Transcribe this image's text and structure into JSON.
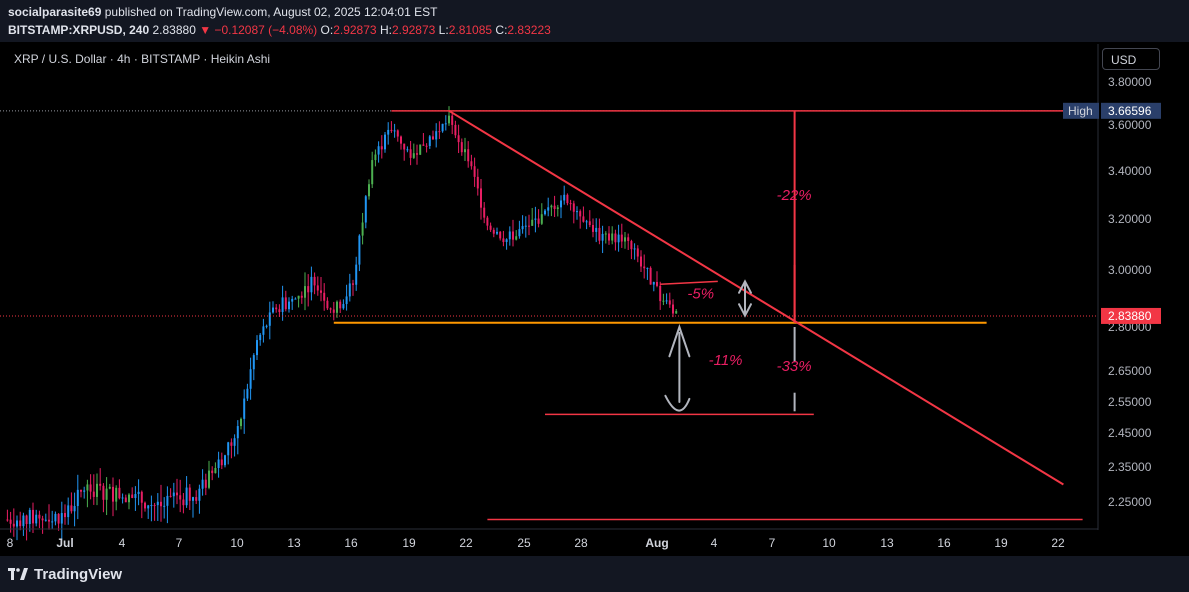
{
  "header": {
    "author": "socialparasite69",
    "published_text": "published on TradingView.com, August 02, 2025 12:04:01 EST",
    "symbol": "BITSTAMP:XRPUSD, 240",
    "last": "2.83880",
    "change": "▼ −0.12087 (−4.08%)",
    "o_label": "O:",
    "o": "2.92873",
    "h_label": "H:",
    "h": "2.92873",
    "l_label": "L:",
    "l": "2.81085",
    "c_label": "C:",
    "c": "2.83223"
  },
  "legend": "XRP / U.S. Dollar · 4h · BITSTAMP · Heikin Ashi",
  "currency_button": "USD",
  "brand": "TradingView",
  "chart_data": {
    "type": "candlestick",
    "title": "XRP / U.S. Dollar · 4h · BITSTAMP · Heikin Ashi",
    "y_axis_ticks": [
      "3.80000",
      "3.60000",
      "3.40000",
      "3.20000",
      "3.00000",
      "2.80000",
      "2.65000",
      "2.55000",
      "2.45000",
      "2.35000",
      "2.25000"
    ],
    "y_axis_values": [
      3.8,
      3.6,
      3.4,
      3.2,
      3.0,
      2.8,
      2.65,
      2.55,
      2.45,
      2.35,
      2.25
    ],
    "x_axis_ticks": [
      "8",
      "Jul",
      "4",
      "7",
      "10",
      "13",
      "16",
      "19",
      "22",
      "25",
      "28",
      "Aug",
      "4",
      "7",
      "10",
      "13",
      "16",
      "19",
      "22"
    ],
    "price_path": [
      {
        "date": "Jun 28",
        "close": 2.2
      },
      {
        "date": "Jul 1",
        "close": 2.21
      },
      {
        "date": "Jul 2",
        "close": 2.29
      },
      {
        "date": "Jul 4",
        "close": 2.27
      },
      {
        "date": "Jul 6",
        "close": 2.24
      },
      {
        "date": "Jul 8",
        "close": 2.28
      },
      {
        "date": "Jul 9",
        "close": 2.36
      },
      {
        "date": "Jul 10",
        "close": 2.45
      },
      {
        "date": "Jul 11",
        "close": 2.75
      },
      {
        "date": "Jul 12",
        "close": 2.87
      },
      {
        "date": "Jul 13",
        "close": 2.9
      },
      {
        "date": "Jul 14",
        "close": 2.97
      },
      {
        "date": "Jul 15",
        "close": 2.85
      },
      {
        "date": "Jul 16",
        "close": 2.95
      },
      {
        "date": "Jul 17",
        "close": 3.45
      },
      {
        "date": "Jul 18",
        "close": 3.58
      },
      {
        "date": "Jul 19",
        "close": 3.47
      },
      {
        "date": "Jul 21",
        "close": 3.62
      },
      {
        "date": "Jul 22",
        "close": 3.45
      },
      {
        "date": "Jul 23",
        "close": 3.18
      },
      {
        "date": "Jul 24",
        "close": 3.12
      },
      {
        "date": "Jul 26",
        "close": 3.22
      },
      {
        "date": "Jul 27",
        "close": 3.3
      },
      {
        "date": "Jul 28",
        "close": 3.21
      },
      {
        "date": "Jul 29",
        "close": 3.12
      },
      {
        "date": "Jul 30",
        "close": 3.13
      },
      {
        "date": "Jul 31",
        "close": 3.03
      },
      {
        "date": "Aug 1",
        "close": 2.9
      },
      {
        "date": "Aug 2",
        "close": 2.84
      }
    ],
    "price_labels": [
      {
        "label": "High",
        "value": "3.66596"
      },
      {
        "label": "",
        "value": "2.83880"
      }
    ],
    "annotations": [
      {
        "type": "horizontal",
        "name": "high",
        "value": 3.66596,
        "from": "Jul 18",
        "to": "Aug 22",
        "color": "#f23645"
      },
      {
        "type": "horizontal",
        "name": "support",
        "value": 2.815,
        "from": "Jul 15",
        "to": "Aug 18",
        "color": "#ff9800"
      },
      {
        "type": "trendline",
        "from": {
          "date": "Jul 21",
          "value": 3.666
        },
        "to": {
          "date": "Aug 22",
          "value": 2.3
        },
        "color": "#f23645"
      },
      {
        "type": "horizontal",
        "name": "target",
        "value": 2.51,
        "from": "Jul 26",
        "to": "Aug 9",
        "color": "#f23645"
      },
      {
        "type": "horizontal",
        "name": "bottom",
        "value": 2.2,
        "from": "Jul 23",
        "to": "Aug 23",
        "color": "#f23645"
      }
    ],
    "text_annotations": [
      "-22%",
      "-5%",
      "-11%",
      "-33%"
    ],
    "grid": false,
    "style": "Heikin Ashi"
  },
  "colors": {
    "background": "#000000",
    "up": "#2196f3",
    "down": "#e91e63",
    "up_alt": "#4caf50",
    "trend": "#f23645",
    "support": "#ff9800",
    "annotation_text": "#e91e63",
    "axis_text": "#b2b5be",
    "high_label_bg": "#2a3f6a"
  }
}
